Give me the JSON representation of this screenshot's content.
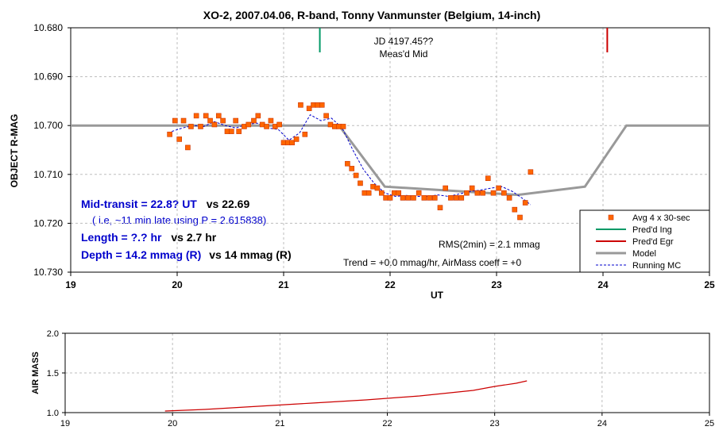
{
  "chart_data": [
    {
      "type": "scatter",
      "title": "XO-2, 2007.04.06, R-band, Tonny Vanmunster (Belgium, 14-inch)",
      "xlabel": "UT",
      "ylabel": "OBJECT R-MAG",
      "xlim": [
        19,
        25
      ],
      "ylim": [
        10.68,
        10.73
      ],
      "y_reversed": true,
      "grid": true,
      "x_ticks": [
        "19",
        "20",
        "21",
        "22",
        "23",
        "24",
        "25"
      ],
      "y_ticks": [
        "10.680",
        "10.690",
        "10.700",
        "10.710",
        "10.720",
        "10.730"
      ],
      "series": [
        {
          "name": "Avg 4 x 30-sec",
          "kind": "points",
          "color": "#ff6600",
          "x": [
            19.93,
            19.98,
            20.02,
            20.06,
            20.1,
            20.13,
            20.18,
            20.22,
            20.27,
            20.31,
            20.35,
            20.39,
            20.43,
            20.47,
            20.51,
            20.55,
            20.58,
            20.63,
            20.67,
            20.72,
            20.76,
            20.8,
            20.84,
            20.88,
            20.92,
            20.96,
            21.0,
            21.04,
            21.08,
            21.12,
            21.16,
            21.2,
            21.24,
            21.28,
            21.32,
            21.36,
            21.4,
            21.44,
            21.48,
            21.52,
            21.56,
            21.6,
            21.64,
            21.68,
            21.72,
            21.76,
            21.8,
            21.84,
            21.88,
            21.92,
            21.96,
            22.0,
            22.04,
            22.08,
            22.12,
            22.17,
            22.22,
            22.27,
            22.32,
            22.37,
            22.42,
            22.47,
            22.52,
            22.57,
            22.62,
            22.67,
            22.72,
            22.77,
            22.82,
            22.87,
            22.92,
            22.97,
            23.02,
            23.07,
            23.12,
            23.17,
            23.22,
            23.27,
            23.32
          ],
          "y": [
            10.7018,
            10.699,
            10.7028,
            10.699,
            10.7045,
            10.7002,
            10.698,
            10.7002,
            10.698,
            10.699,
            10.6998,
            10.698,
            10.699,
            10.7012,
            10.7012,
            10.699,
            10.7012,
            10.7002,
            10.6998,
            10.699,
            10.698,
            10.6998,
            10.7002,
            10.699,
            10.7002,
            10.6998,
            10.7035,
            10.7035,
            10.7035,
            10.7028,
            10.6958,
            10.7018,
            10.6965,
            10.6958,
            10.6958,
            10.6958,
            10.698,
            10.6998,
            10.7002,
            10.7002,
            10.7002,
            10.7078,
            10.7088,
            10.7102,
            10.7118,
            10.7138,
            10.7138,
            10.7125,
            10.7128,
            10.7138,
            10.7148,
            10.7148,
            10.7138,
            10.7138,
            10.7148,
            10.7148,
            10.7148,
            10.7138,
            10.7148,
            10.7148,
            10.7148,
            10.7168,
            10.7128,
            10.7148,
            10.7148,
            10.7148,
            10.7138,
            10.7128,
            10.7138,
            10.7138,
            10.7108,
            10.7138,
            10.7128,
            10.7138,
            10.7148,
            10.7172,
            10.7188,
            10.7158,
            10.7095
          ]
        },
        {
          "name": "Model",
          "kind": "line",
          "color": "#999999",
          "x": [
            19,
            21.52,
            21.95,
            23.2,
            23.83,
            24.22,
            25
          ],
          "y": [
            10.7,
            10.7,
            10.7125,
            10.7142,
            10.7125,
            10.7,
            10.7
          ]
        },
        {
          "name": "Running MC",
          "kind": "dashed-line",
          "color": "#0000cc",
          "x": [
            19.95,
            20.05,
            20.15,
            20.25,
            20.35,
            20.45,
            20.55,
            20.65,
            20.75,
            20.85,
            20.95,
            21.05,
            21.15,
            21.25,
            21.35,
            21.45,
            21.55,
            21.65,
            21.75,
            21.85,
            21.95,
            22.05,
            22.15,
            22.25,
            22.35,
            22.45,
            22.55,
            22.65,
            22.75,
            22.85,
            22.95,
            23.05,
            23.15,
            23.25,
            23.32
          ],
          "y": [
            10.7012,
            10.7005,
            10.7,
            10.7002,
            10.6992,
            10.7,
            10.7005,
            10.6998,
            10.6995,
            10.7005,
            10.7008,
            10.703,
            10.7015,
            10.6978,
            10.699,
            10.6985,
            10.7005,
            10.705,
            10.709,
            10.7118,
            10.7138,
            10.7145,
            10.7143,
            10.7145,
            10.7145,
            10.7142,
            10.7145,
            10.714,
            10.7135,
            10.7132,
            10.7128,
            10.7125,
            10.7135,
            10.715,
            10.7162
          ]
        }
      ],
      "markers": [
        {
          "name": "Pred'd Ing",
          "x": 21.34,
          "color": "#009966"
        },
        {
          "name": "Pred'd Egr",
          "x": 24.04,
          "color": "#cc0000"
        }
      ],
      "annotations": {
        "mid_label": [
          "JD 4197.45??",
          "Meas'd Mid"
        ],
        "mid_transit_left": "Mid-transit = 22.8? UT",
        "mid_transit_right": "vs 22.69",
        "ie_note": "( i.e, ~11 min late using P = 2.615838)",
        "length_left": "Length = ?.? hr",
        "length_right": "vs 2.7 hr",
        "depth_left": "Depth = 14.2 mmag (R)",
        "depth_right": "vs 14 mmag (R)",
        "rms": "RMS(2min) = 2.1 mmag",
        "trend": "Trend = +0.0 mmag/hr, AirMass coeff = +0"
      },
      "legend_position": "bottom-right"
    },
    {
      "type": "line",
      "title": "",
      "xlabel": "",
      "ylabel": "AIR MASS",
      "xlim": [
        19,
        25
      ],
      "ylim": [
        1.0,
        2.0
      ],
      "grid": true,
      "x_ticks": [
        "19",
        "20",
        "21",
        "22",
        "23",
        "24",
        "25"
      ],
      "y_ticks": [
        "1.0",
        "1.5",
        "2.0"
      ],
      "series": [
        {
          "kind": "line",
          "color": "#cc0000",
          "x": [
            19.93,
            20.3,
            20.8,
            21.3,
            21.8,
            22.3,
            22.8,
            23.0,
            23.2,
            23.3
          ],
          "y": [
            1.02,
            1.04,
            1.08,
            1.12,
            1.16,
            1.21,
            1.28,
            1.33,
            1.37,
            1.4
          ]
        }
      ]
    }
  ]
}
